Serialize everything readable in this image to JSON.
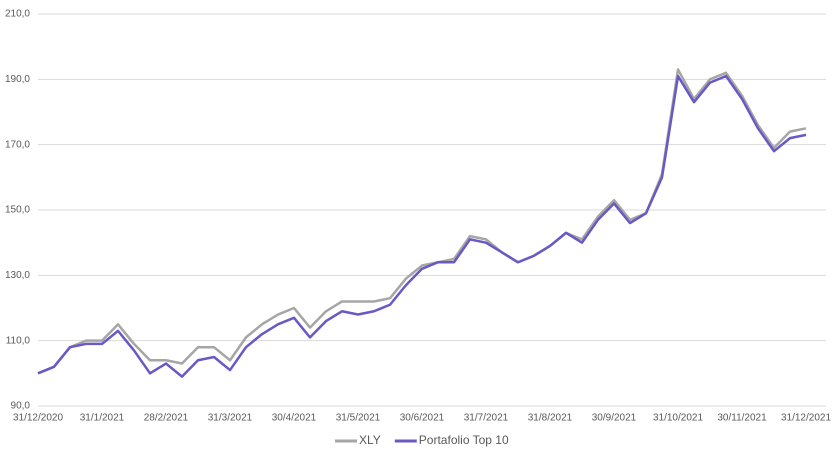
{
  "chart_data": {
    "type": "line",
    "categories": [
      "31/12/2020",
      null,
      null,
      null,
      "31/1/2021",
      null,
      null,
      null,
      "28/2/2021",
      null,
      null,
      null,
      "31/3/2021",
      null,
      null,
      null,
      "30/4/2021",
      null,
      null,
      null,
      "31/5/2021",
      null,
      null,
      null,
      "30/6/2021",
      null,
      null,
      null,
      "31/7/2021",
      null,
      null,
      null,
      "31/8/2021",
      null,
      null,
      null,
      "30/9/2021",
      null,
      null,
      null,
      "31/10/2021",
      null,
      null,
      null,
      "30/11/2021",
      null,
      null,
      null,
      "31/12/2021"
    ],
    "series": [
      {
        "name": "XLY",
        "color": "#a6a6a6",
        "values": [
          100,
          102,
          108,
          110,
          110,
          115,
          109,
          104,
          104,
          103,
          108,
          108,
          104,
          111,
          115,
          118,
          120,
          114,
          119,
          122,
          122,
          122,
          123,
          129,
          133,
          134,
          135,
          142,
          141,
          137,
          134,
          136,
          139,
          143,
          141,
          148,
          153,
          147,
          149,
          161,
          193,
          184,
          190,
          192,
          185,
          176,
          169,
          174,
          175
        ]
      },
      {
        "name": "Portafolio Top 10",
        "color": "#6a58c4",
        "values": [
          100,
          102,
          108,
          109,
          109,
          113,
          107,
          100,
          103,
          99,
          104,
          105,
          101,
          108,
          112,
          115,
          117,
          111,
          116,
          119,
          118,
          119,
          121,
          127,
          132,
          134,
          134,
          141,
          140,
          137,
          134,
          136,
          139,
          143,
          140,
          147,
          152,
          146,
          149,
          160,
          191,
          183,
          189,
          191,
          184,
          175,
          168,
          172,
          173
        ]
      }
    ],
    "ylim": [
      90,
      210
    ],
    "yticks": [
      {
        "value": 90,
        "label": "90,0"
      },
      {
        "value": 110,
        "label": "110,0"
      },
      {
        "value": 130,
        "label": "130,0"
      },
      {
        "value": 150,
        "label": "150,0"
      },
      {
        "value": 170,
        "label": "170,0"
      },
      {
        "value": 190,
        "label": "190,0"
      },
      {
        "value": 210,
        "label": "210,0"
      }
    ],
    "grid": true,
    "legend": "bottom"
  }
}
